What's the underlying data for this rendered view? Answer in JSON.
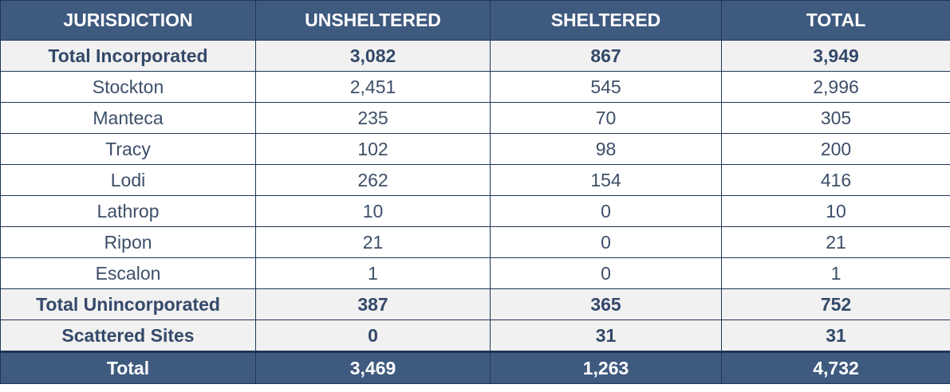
{
  "chart_data": {
    "type": "table",
    "columns": [
      "JURISDICTION",
      "UNSHELTERED",
      "SHELTERED",
      "TOTAL"
    ],
    "rows": [
      {
        "label": "Total Incorporated",
        "values": [
          "3,082",
          "867",
          "3,949"
        ],
        "style": "subtotal"
      },
      {
        "label": "Stockton",
        "values": [
          "2,451",
          "545",
          "2,996"
        ],
        "style": "normal"
      },
      {
        "label": "Manteca",
        "values": [
          "235",
          "70",
          "305"
        ],
        "style": "normal"
      },
      {
        "label": "Tracy",
        "values": [
          "102",
          "98",
          "200"
        ],
        "style": "normal"
      },
      {
        "label": "Lodi",
        "values": [
          "262",
          "154",
          "416"
        ],
        "style": "normal"
      },
      {
        "label": "Lathrop",
        "values": [
          "10",
          "0",
          "10"
        ],
        "style": "normal"
      },
      {
        "label": "Ripon",
        "values": [
          "21",
          "0",
          "21"
        ],
        "style": "normal"
      },
      {
        "label": "Escalon",
        "values": [
          "1",
          "0",
          "1"
        ],
        "style": "normal"
      },
      {
        "label": "Total Unincorporated",
        "values": [
          "387",
          "365",
          "752"
        ],
        "style": "subtotal"
      },
      {
        "label": "Scattered Sites",
        "values": [
          "0",
          "31",
          "31"
        ],
        "style": "subtotal"
      }
    ],
    "total_row": {
      "label": "Total",
      "values": [
        "3,469",
        "1,263",
        "4,732"
      ]
    }
  },
  "colors": {
    "header_bg": "#3f5a7f",
    "header_text": "#ffffff",
    "subtotal_bg": "#f1f1f1",
    "body_text": "#3d4f68",
    "border": "#1f3556"
  }
}
